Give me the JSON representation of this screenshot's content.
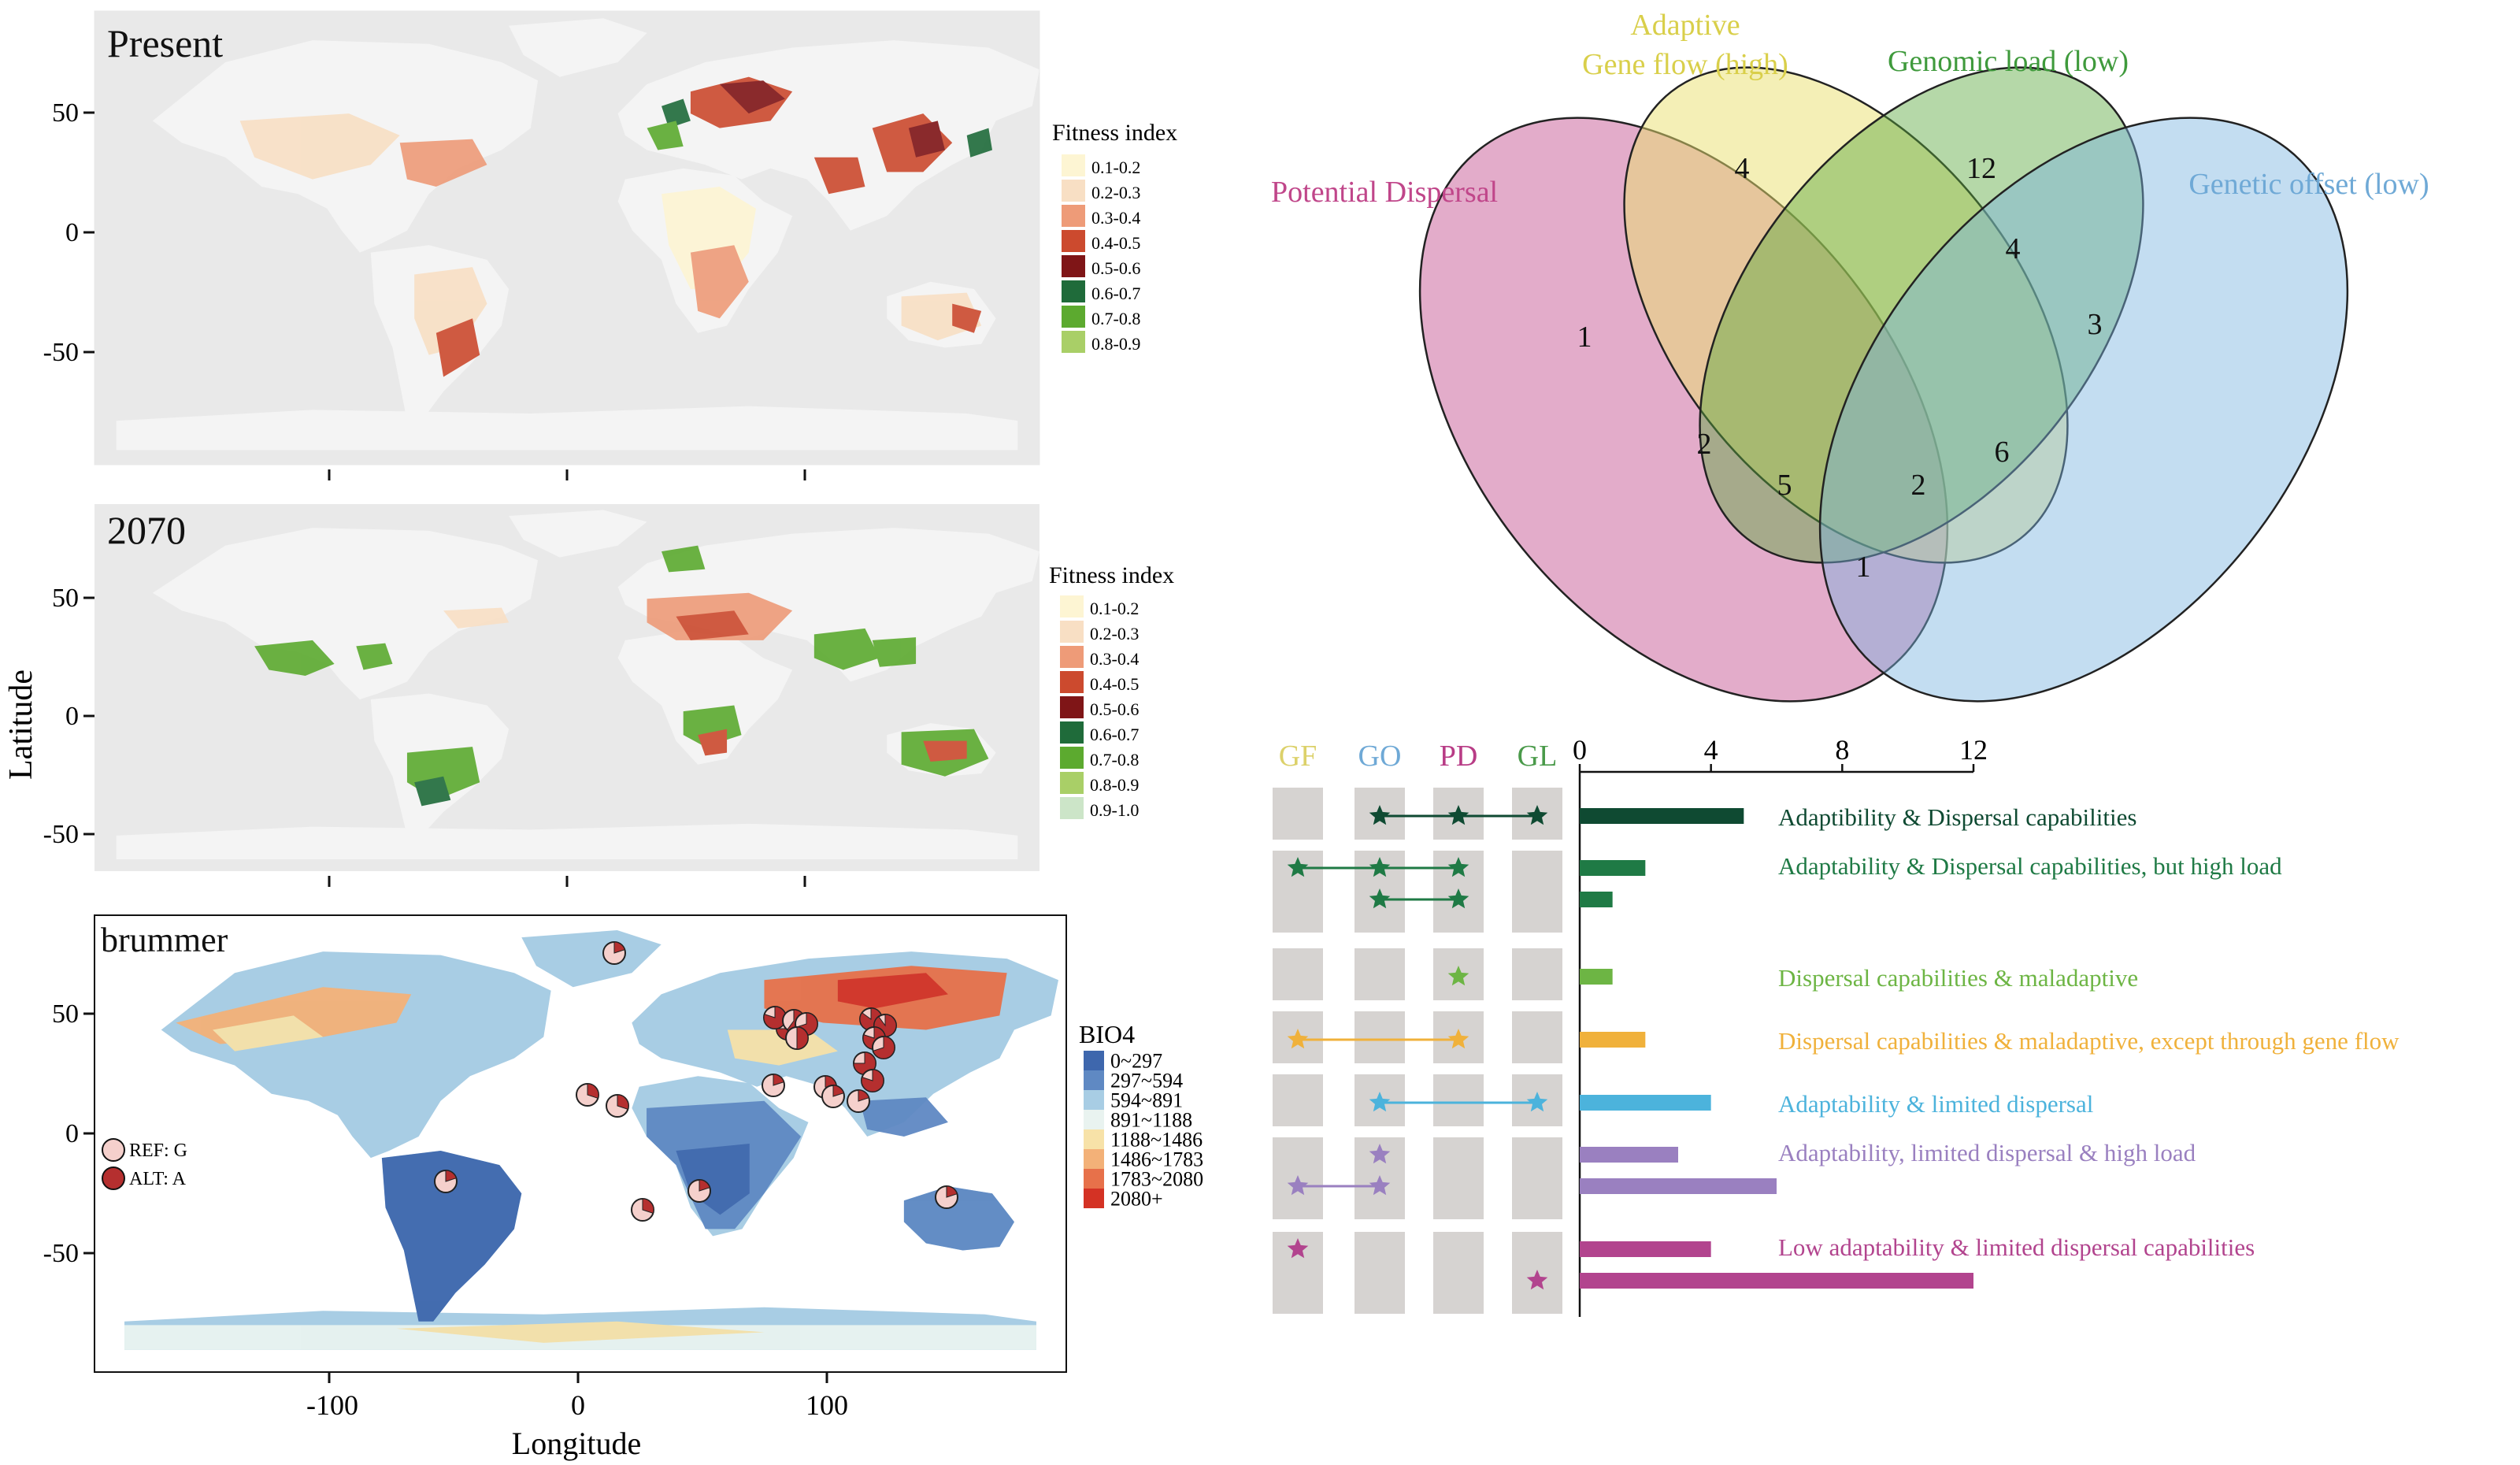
{
  "maps": {
    "present": {
      "title": "Present"
    },
    "future": {
      "title": "2070"
    },
    "snp": {
      "title": "brummer"
    },
    "lat_ticks": [
      "50",
      "0",
      "-50"
    ],
    "lon_ticks": [
      "-100",
      "0",
      "100"
    ],
    "ylabel": "Latitude",
    "xlabel": "Longitude"
  },
  "legends": {
    "fitness_title": "Fitness index",
    "present_items": [
      {
        "label": "0.1-0.2",
        "color": "#fdf5d3"
      },
      {
        "label": "0.2-0.3",
        "color": "#f8dfc4"
      },
      {
        "label": "0.3-0.4",
        "color": "#ee9b78"
      },
      {
        "label": "0.4-0.5",
        "color": "#cc4a2e"
      },
      {
        "label": "0.5-0.6",
        "color": "#7f1517"
      },
      {
        "label": "0.6-0.7",
        "color": "#1f6b3a"
      },
      {
        "label": "0.7-0.8",
        "color": "#5caa2f"
      },
      {
        "label": "0.8-0.9",
        "color": "#a9cf67"
      }
    ],
    "future_items": [
      {
        "label": "0.1-0.2",
        "color": "#fdf5d3"
      },
      {
        "label": "0.2-0.3",
        "color": "#f8dfc4"
      },
      {
        "label": "0.3-0.4",
        "color": "#ee9b78"
      },
      {
        "label": "0.4-0.5",
        "color": "#cc4a2e"
      },
      {
        "label": "0.5-0.6",
        "color": "#7f1517"
      },
      {
        "label": "0.6-0.7",
        "color": "#1f6b3a"
      },
      {
        "label": "0.7-0.8",
        "color": "#5caa2f"
      },
      {
        "label": "0.8-0.9",
        "color": "#a9cf67"
      },
      {
        "label": "0.9-1.0",
        "color": "#cce5c8"
      }
    ],
    "bio_title": "BIO4",
    "bio_items": [
      {
        "label": "0~297",
        "color": "#3e67ad"
      },
      {
        "label": "297~594",
        "color": "#5f89c3"
      },
      {
        "label": "594~891",
        "color": "#a8cde4"
      },
      {
        "label": "891~1188",
        "color": "#e9f3f0"
      },
      {
        "label": "1188~1486",
        "color": "#f7e2a8"
      },
      {
        "label": "1486~1783",
        "color": "#f3b178"
      },
      {
        "label": "1783~2080",
        "color": "#e7714a"
      },
      {
        "label": "2080+",
        "color": "#d43224"
      }
    ],
    "allele_items": [
      {
        "label": "REF: G",
        "color": "#f5d0cc"
      },
      {
        "label": "ALT: A",
        "color": "#b52f2f"
      }
    ]
  },
  "venn": {
    "sets": [
      {
        "name": "Potential Dispersal",
        "color": "#c0468a"
      },
      {
        "name_line1": "Adaptive",
        "name_line2": "Gene flow (high)",
        "color": "#d9cf4a"
      },
      {
        "name": "Genomic load (low)",
        "color": "#3f9a3c"
      },
      {
        "name": "Genetic offset (low)",
        "color": "#6fa9d6"
      }
    ],
    "counts": [
      {
        "region": "PD only",
        "value": "1"
      },
      {
        "region": "GF only",
        "value": "4"
      },
      {
        "region": "GF & GL",
        "value": "12"
      },
      {
        "region": "GF & GL & GO",
        "value": "4"
      },
      {
        "region": "GO only",
        "value": "3"
      },
      {
        "region": "PD & GF",
        "value": "2"
      },
      {
        "region": "PD & GF & GL & GO",
        "value": "5"
      },
      {
        "region": "PD & GL & GO",
        "value": "2"
      },
      {
        "region": "GL & GO",
        "value": "6"
      },
      {
        "region": "PD & GO",
        "value": "1"
      }
    ]
  },
  "upset": {
    "columns": [
      {
        "label": "GF",
        "color": "#dcd16a"
      },
      {
        "label": "GO",
        "color": "#6fa9d6"
      },
      {
        "label": "PD",
        "color": "#b83c86"
      },
      {
        "label": "GL",
        "color": "#4a9a4a"
      }
    ],
    "axis_ticks": [
      "0",
      "4",
      "8",
      "12"
    ],
    "axis_max": 12,
    "groups": [
      {
        "label": "Adaptibility & Dispersal capabilities",
        "color": "#0f4a32",
        "bars": [
          {
            "value": 5,
            "stars": [
              1,
              2,
              3
            ]
          }
        ]
      },
      {
        "label": "Adaptability & Dispersal capabilities, but high load",
        "color": "#1f7a45",
        "bars": [
          {
            "value": 2,
            "stars": [
              0,
              1,
              2
            ]
          },
          {
            "value": 1,
            "stars": [
              1,
              2
            ]
          }
        ]
      },
      {
        "label": "Dispersal capabilities & maladaptive",
        "color": "#6db544",
        "bars": [
          {
            "value": 1,
            "stars": [
              2
            ]
          }
        ]
      },
      {
        "label": "Dispersal capabilities & maladaptive, except through gene flow",
        "color": "#f0b13b",
        "bars": [
          {
            "value": 2,
            "stars": [
              0,
              2
            ]
          }
        ]
      },
      {
        "label": "Adaptability & limited dispersal",
        "color": "#4cb3dc",
        "bars": [
          {
            "value": 4,
            "stars": [
              1,
              3
            ]
          }
        ]
      },
      {
        "label": "Adaptability, limited dispersal & high load",
        "color": "#9a80c0",
        "bars": [
          {
            "value": 3,
            "stars": [
              1
            ]
          },
          {
            "value": 6,
            "stars": [
              0,
              1
            ]
          }
        ]
      },
      {
        "label": "Low adaptability & limited dispersal capabilities",
        "color": "#b2448e",
        "bars": [
          {
            "value": 4,
            "stars": [
              0
            ]
          },
          {
            "value": 12,
            "stars": [
              3
            ]
          }
        ]
      }
    ]
  }
}
